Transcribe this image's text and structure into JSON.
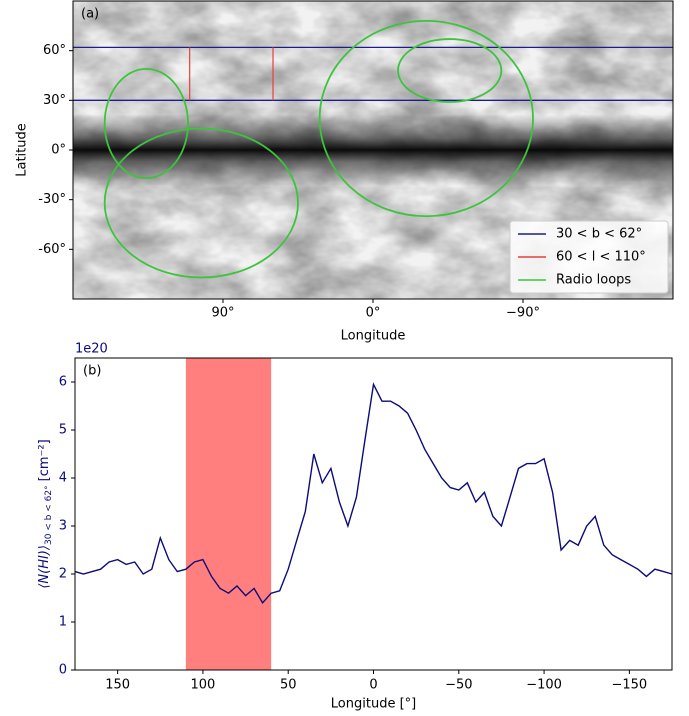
{
  "chart_data": [
    {
      "type": "map",
      "label": "(a)",
      "xlabel": "Longitude",
      "ylabel": "Latitude",
      "xlim": [
        180,
        -180
      ],
      "ylim": [
        -90,
        90
      ],
      "xticks": [
        {
          "value": 90,
          "label": "90°"
        },
        {
          "value": 0,
          "label": "0°"
        },
        {
          "value": -90,
          "label": "−90°"
        }
      ],
      "yticks": [
        {
          "value": 60,
          "label": "60°"
        },
        {
          "value": 30,
          "label": "30°"
        },
        {
          "value": 0,
          "label": "0°"
        },
        {
          "value": -30,
          "label": "-30°"
        },
        {
          "value": -60,
          "label": "-60°"
        }
      ],
      "legend": "lower right",
      "series": [
        {
          "name": "30 < b < 62°",
          "color": "#1c1c8c",
          "b": [
            30,
            62
          ]
        },
        {
          "name": "60 < l < 110°",
          "color": "#e8403a",
          "l": [
            110,
            60
          ],
          "b": [
            30,
            62
          ]
        },
        {
          "name": "Radio loops",
          "color": "#3cc43c",
          "loops": [
            {
              "l": 136,
              "b": 16,
              "rl": 25,
              "rb": 33
            },
            {
              "l": 103,
              "b": -32,
              "rl": 58,
              "rb": 45
            },
            {
              "l": -32,
              "b": 19,
              "rl": 64,
              "rb": 59
            },
            {
              "l": -46,
              "b": 48,
              "rl": 31,
              "rb": 19
            }
          ]
        }
      ]
    },
    {
      "type": "line",
      "label": "(b)",
      "offset_text": "1e20",
      "xlabel": "Longitude [°]",
      "ylabel": "⟨N(HI)⟩",
      "ylabel_sub": "30 < b < 62°",
      "ylabel_unit": "[cm⁻²]",
      "xlim": [
        175,
        -175
      ],
      "ylim": [
        0,
        6.5
      ],
      "xticks": [
        150,
        100,
        50,
        0,
        {
          "value": -50,
          "label": "−50"
        },
        {
          "value": -100,
          "label": "−100"
        },
        {
          "value": -150,
          "label": "−150"
        }
      ],
      "yticks": [
        0,
        1,
        2,
        3,
        4,
        5,
        6
      ],
      "span": {
        "x": [
          110,
          60
        ],
        "color": "#ff7f7f"
      },
      "series": [
        {
          "color": "#0b0b7a",
          "x": [
            175,
            170,
            165,
            160,
            155,
            150,
            145,
            140,
            135,
            130,
            125,
            120,
            115,
            110,
            105,
            100,
            95,
            90,
            85,
            80,
            75,
            70,
            65,
            60,
            55,
            50,
            45,
            40,
            35,
            30,
            25,
            20,
            15,
            10,
            5,
            0,
            -5,
            -10,
            -15,
            -20,
            -25,
            -30,
            -35,
            -40,
            -45,
            -50,
            -55,
            -60,
            -65,
            -70,
            -75,
            -80,
            -85,
            -90,
            -95,
            -100,
            -105,
            -110,
            -115,
            -120,
            -125,
            -130,
            -135,
            -140,
            -145,
            -150,
            -155,
            -160,
            -165,
            -170,
            -175
          ],
          "values": [
            2.05,
            2.0,
            2.05,
            2.1,
            2.25,
            2.3,
            2.2,
            2.25,
            2.0,
            2.1,
            2.75,
            2.3,
            2.05,
            2.1,
            2.25,
            2.3,
            1.95,
            1.7,
            1.6,
            1.75,
            1.55,
            1.7,
            1.4,
            1.6,
            1.65,
            2.1,
            2.7,
            3.3,
            4.5,
            3.9,
            4.2,
            3.5,
            3.0,
            3.6,
            4.8,
            5.95,
            5.6,
            5.6,
            5.5,
            5.35,
            5.0,
            4.6,
            4.3,
            4.0,
            3.8,
            3.75,
            3.9,
            3.5,
            3.7,
            3.2,
            3.0,
            3.6,
            4.2,
            4.3,
            4.3,
            4.4,
            3.7,
            2.5,
            2.7,
            2.6,
            3.0,
            3.2,
            2.6,
            2.4,
            2.3,
            2.2,
            2.1,
            1.95,
            2.1,
            2.05,
            2.0
          ]
        }
      ]
    }
  ]
}
